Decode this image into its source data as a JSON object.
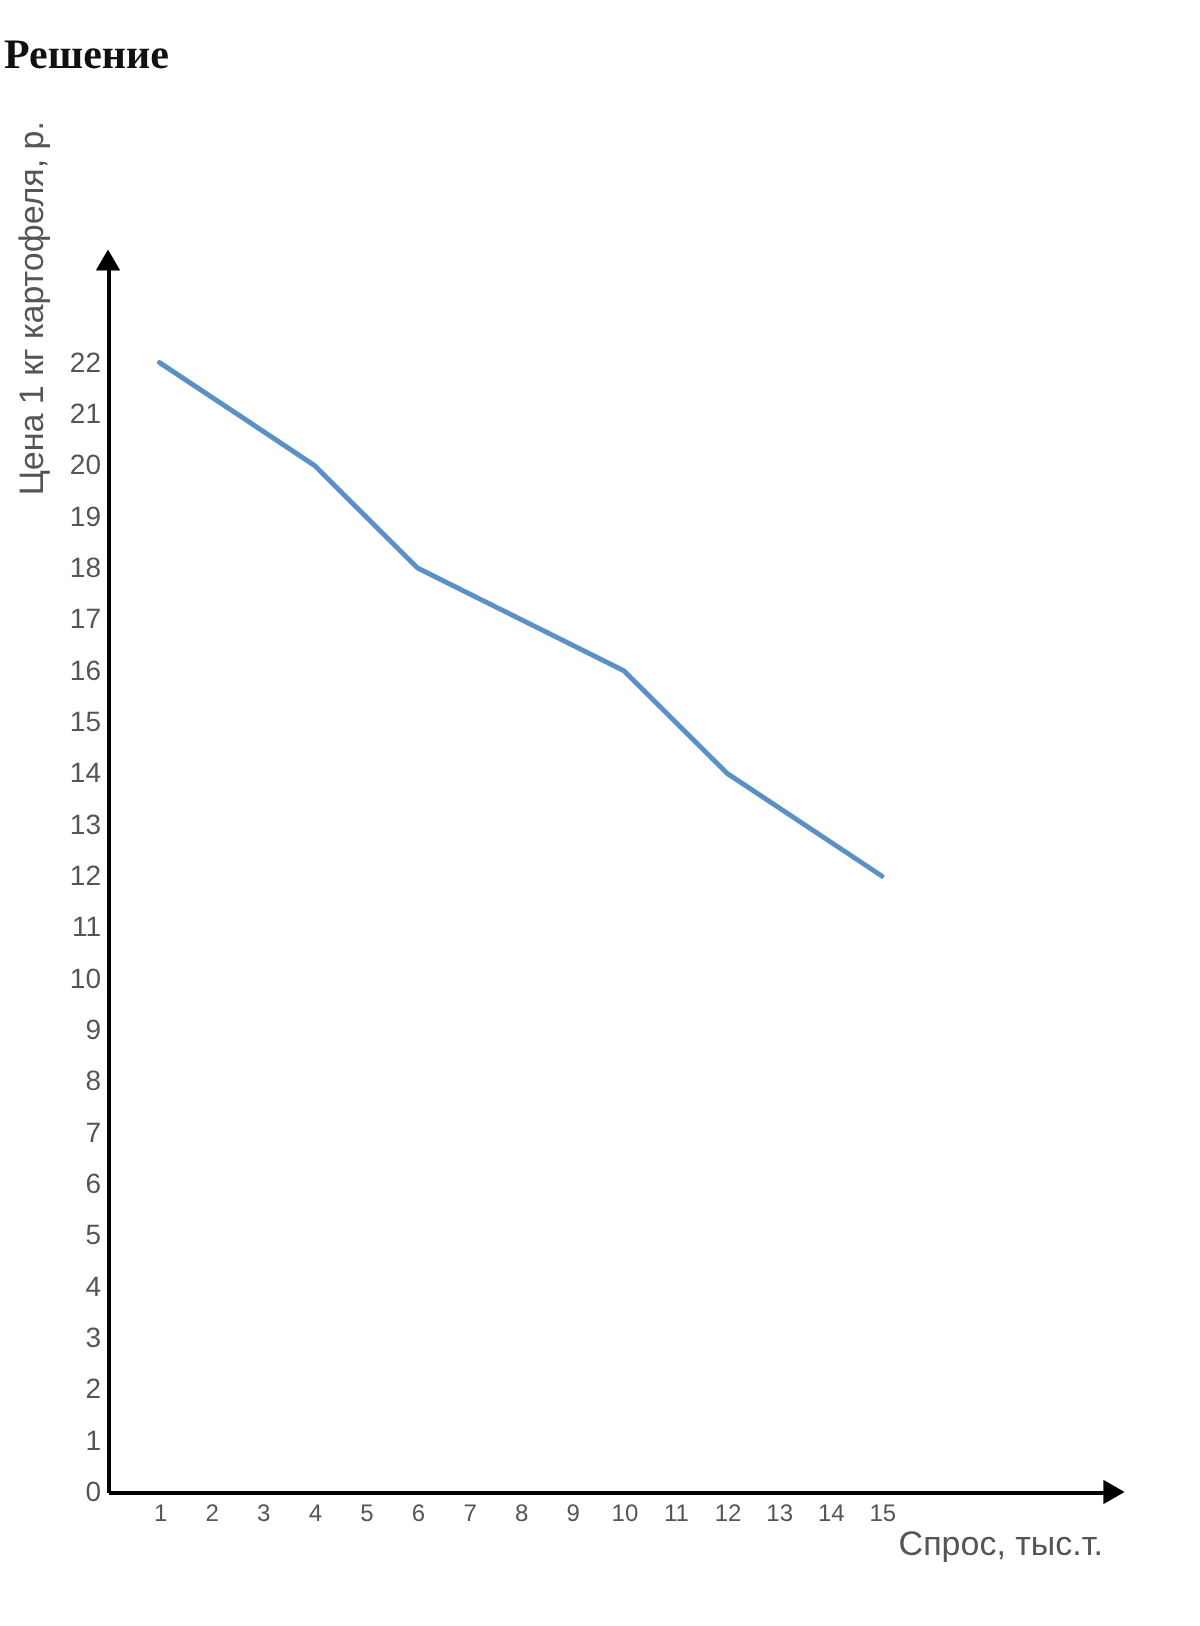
{
  "chart_data": {
    "type": "line",
    "title": "Решение",
    "xlabel": "Спрос, тыс.т.",
    "ylabel": "Цена 1 кг картофеля, р.",
    "x": [
      1,
      4,
      6,
      10,
      12,
      15
    ],
    "series": [
      {
        "color": "#5b8fc7",
        "values": [
          22,
          20,
          18,
          16,
          14,
          12
        ]
      }
    ],
    "xlim": [
      0,
      19.5
    ],
    "ylim": [
      0,
      24
    ],
    "xticks": [
      1,
      2,
      3,
      4,
      5,
      6,
      7,
      8,
      9,
      10,
      11,
      12,
      13,
      14,
      15
    ],
    "yticks": [
      0,
      1,
      2,
      3,
      4,
      5,
      6,
      7,
      8,
      9,
      10,
      11,
      12,
      13,
      14,
      15,
      16,
      17,
      18,
      19,
      20,
      21,
      22
    ],
    "grid": false,
    "legend": false,
    "marker": "none",
    "line_style": "solid"
  }
}
